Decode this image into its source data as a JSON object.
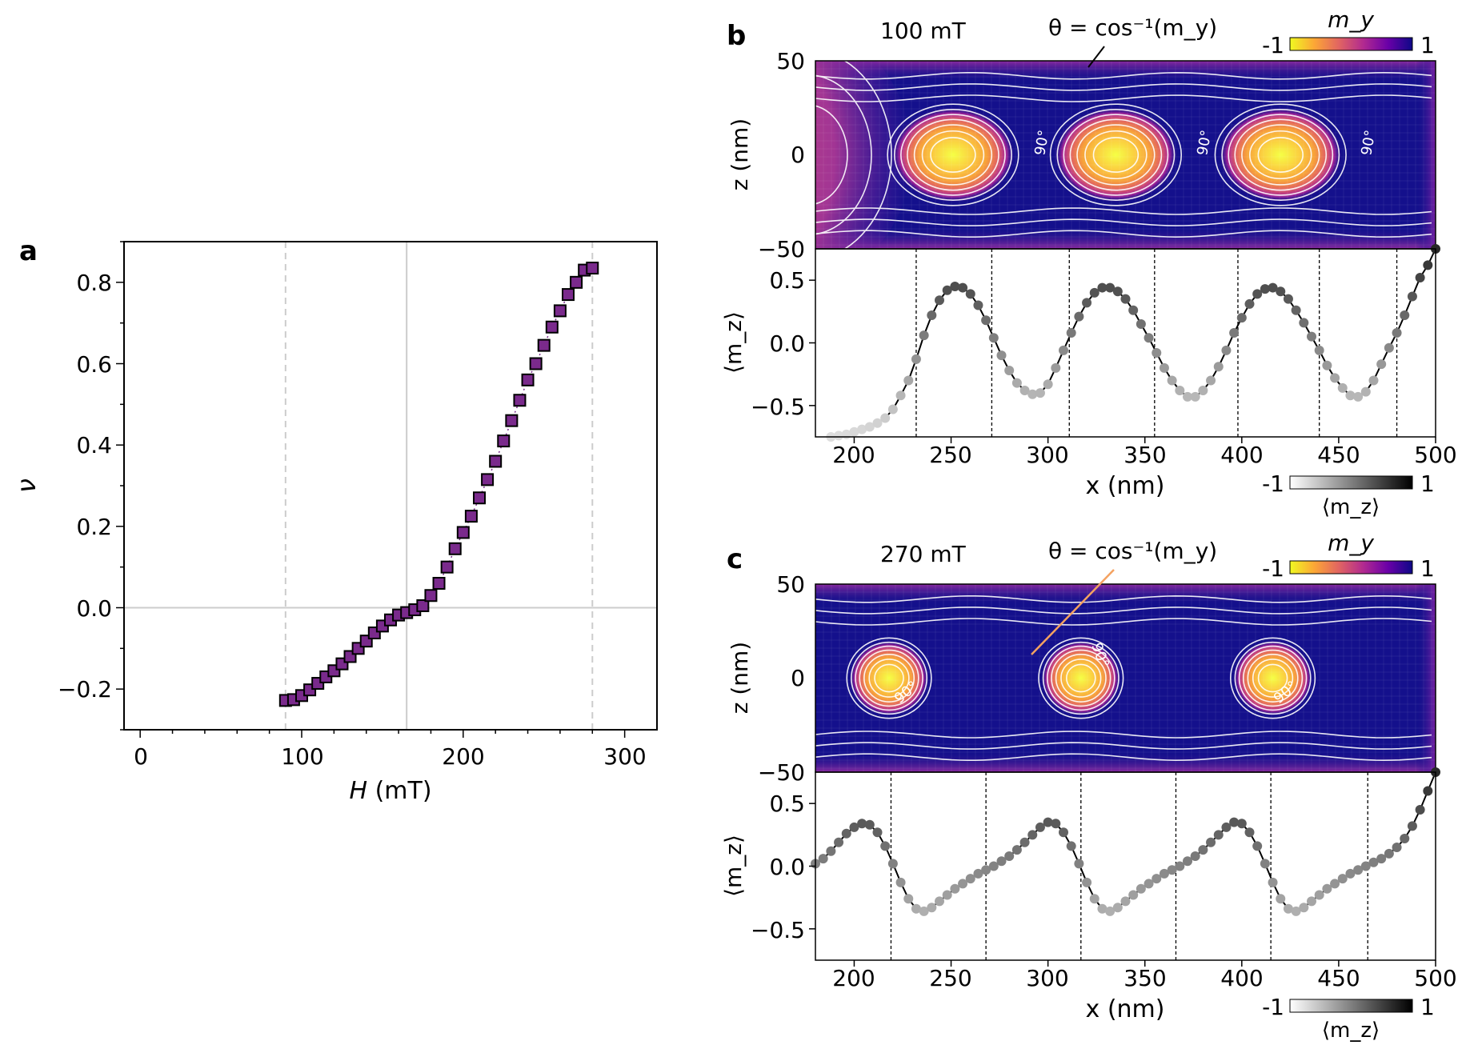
{
  "chart_data": [
    {
      "panel": "a",
      "type": "scatter",
      "xlabel_italic": "H",
      "xlabel_unit": " (mT)",
      "ylabel": "ν",
      "xlim": [
        -10,
        320
      ],
      "ylim": [
        -0.3,
        0.9
      ],
      "xticks": [
        "0",
        "100",
        "200",
        "300"
      ],
      "yticks": [
        "−0.2",
        "0.0",
        "0.2",
        "0.4",
        "0.6",
        "0.8"
      ],
      "marker_color": "#7a2a8c",
      "dashed_vlines": [
        90,
        280
      ],
      "solid_vline": 165,
      "hline": 0,
      "x": [
        90,
        95,
        100,
        105,
        110,
        115,
        120,
        125,
        130,
        135,
        140,
        145,
        150,
        155,
        160,
        165,
        170,
        175,
        180,
        185,
        190,
        195,
        200,
        205,
        210,
        215,
        220,
        225,
        230,
        235,
        240,
        245,
        250,
        255,
        260,
        265,
        270,
        275,
        280
      ],
      "y": [
        -0.228,
        -0.226,
        -0.216,
        -0.202,
        -0.186,
        -0.17,
        -0.155,
        -0.138,
        -0.12,
        -0.1,
        -0.082,
        -0.062,
        -0.045,
        -0.03,
        -0.018,
        -0.012,
        -0.005,
        0.005,
        0.03,
        0.06,
        0.1,
        0.145,
        0.185,
        0.225,
        0.27,
        0.315,
        0.36,
        0.41,
        0.46,
        0.51,
        0.56,
        0.6,
        0.645,
        0.69,
        0.73,
        0.77,
        0.8,
        0.83,
        0.835
      ]
    },
    {
      "panel": "b",
      "type": "heatmap",
      "field_label": "100 mT",
      "annotation": "θ = cos⁻¹(m_y)",
      "colorbar_title": "m_y",
      "colorbar_min": "-1",
      "colorbar_max": "1",
      "ylabel": "z (nm)",
      "yticks": [
        "50",
        "0",
        "−50"
      ],
      "contour_label": "90°",
      "xlim": [
        180,
        500
      ],
      "zlim": [
        -50,
        50
      ],
      "skyrmion_centers_x": [
        251,
        335,
        420
      ],
      "edge_bubble_x": 180
    },
    {
      "panel": "b",
      "type": "line",
      "ylabel": "⟨m_z⟩",
      "xlabel": "x (nm)",
      "xlim": [
        180,
        500
      ],
      "ylim": [
        -0.75,
        0.75
      ],
      "xticks": [
        "200",
        "250",
        "300",
        "350",
        "400",
        "450",
        "500"
      ],
      "yticks": [
        "0.5",
        "0.0",
        "−0.5"
      ],
      "dashed_vlines": [
        232,
        271,
        311,
        355,
        398,
        440,
        480
      ],
      "colorbar_min": "-1",
      "colorbar_max": "1",
      "colorbar_label": "⟨m_z⟩",
      "x": [
        188,
        192,
        196,
        200,
        204,
        208,
        212,
        216,
        220,
        224,
        228,
        232,
        236,
        240,
        244,
        248,
        252,
        256,
        260,
        264,
        268,
        272,
        276,
        280,
        284,
        288,
        292,
        296,
        300,
        304,
        308,
        312,
        316,
        320,
        324,
        328,
        332,
        336,
        340,
        344,
        348,
        352,
        356,
        360,
        364,
        368,
        372,
        376,
        380,
        384,
        388,
        392,
        396,
        400,
        404,
        408,
        412,
        416,
        420,
        424,
        428,
        432,
        436,
        440,
        444,
        448,
        452,
        456,
        460,
        464,
        468,
        472,
        476,
        480,
        484,
        488,
        492,
        496,
        500
      ],
      "y": [
        -0.75,
        -0.74,
        -0.73,
        -0.71,
        -0.69,
        -0.67,
        -0.64,
        -0.6,
        -0.53,
        -0.42,
        -0.3,
        -0.13,
        0.06,
        0.22,
        0.34,
        0.42,
        0.45,
        0.44,
        0.39,
        0.3,
        0.18,
        0.04,
        -0.1,
        -0.22,
        -0.32,
        -0.38,
        -0.41,
        -0.4,
        -0.33,
        -0.2,
        -0.06,
        0.08,
        0.21,
        0.32,
        0.4,
        0.44,
        0.44,
        0.41,
        0.35,
        0.26,
        0.15,
        0.04,
        -0.08,
        -0.2,
        -0.3,
        -0.38,
        -0.43,
        -0.43,
        -0.38,
        -0.3,
        -0.19,
        -0.06,
        0.08,
        0.2,
        0.31,
        0.39,
        0.43,
        0.44,
        0.41,
        0.35,
        0.26,
        0.16,
        0.05,
        -0.06,
        -0.18,
        -0.28,
        -0.36,
        -0.42,
        -0.43,
        -0.39,
        -0.3,
        -0.17,
        -0.04,
        0.08,
        0.22,
        0.37,
        0.52,
        0.62,
        0.75
      ]
    },
    {
      "panel": "c",
      "type": "heatmap",
      "field_label": "270 mT",
      "annotation": "θ = cos⁻¹(m_y)",
      "colorbar_title": "m_y",
      "colorbar_min": "-1",
      "colorbar_max": "1",
      "ylabel": "z (nm)",
      "yticks": [
        "50",
        "0",
        "−50"
      ],
      "contour_label": "90°",
      "xlim": [
        180,
        500
      ],
      "zlim": [
        -50,
        50
      ],
      "skyrmion_centers_x": [
        218,
        317,
        416
      ]
    },
    {
      "panel": "c",
      "type": "line",
      "ylabel": "⟨m_z⟩",
      "xlabel": "x (nm)",
      "xlim": [
        180,
        500
      ],
      "ylim": [
        -0.75,
        0.75
      ],
      "xticks": [
        "200",
        "250",
        "300",
        "350",
        "400",
        "450",
        "500"
      ],
      "yticks": [
        "0.5",
        "0.0",
        "−0.5"
      ],
      "dashed_vlines": [
        219,
        268,
        317,
        366,
        415,
        465
      ],
      "colorbar_min": "-1",
      "colorbar_max": "1",
      "colorbar_label": "⟨m_z⟩",
      "x": [
        180,
        184,
        188,
        192,
        196,
        200,
        204,
        208,
        212,
        216,
        220,
        224,
        228,
        232,
        236,
        240,
        244,
        248,
        252,
        256,
        260,
        264,
        268,
        272,
        276,
        280,
        284,
        288,
        292,
        296,
        300,
        304,
        308,
        312,
        316,
        320,
        324,
        328,
        332,
        336,
        340,
        344,
        348,
        352,
        356,
        360,
        364,
        368,
        372,
        376,
        380,
        384,
        388,
        392,
        396,
        400,
        404,
        408,
        412,
        416,
        420,
        424,
        428,
        432,
        436,
        440,
        444,
        448,
        452,
        456,
        460,
        464,
        468,
        472,
        476,
        480,
        484,
        488,
        492,
        496,
        500
      ],
      "y": [
        0.02,
        0.06,
        0.12,
        0.19,
        0.26,
        0.31,
        0.34,
        0.33,
        0.27,
        0.16,
        0.02,
        -0.13,
        -0.26,
        -0.34,
        -0.36,
        -0.33,
        -0.28,
        -0.23,
        -0.18,
        -0.14,
        -0.1,
        -0.06,
        -0.03,
        0,
        0.04,
        0.08,
        0.13,
        0.19,
        0.25,
        0.31,
        0.35,
        0.34,
        0.27,
        0.16,
        0.02,
        -0.13,
        -0.26,
        -0.34,
        -0.36,
        -0.33,
        -0.28,
        -0.23,
        -0.18,
        -0.14,
        -0.1,
        -0.06,
        -0.03,
        0,
        0.04,
        0.08,
        0.13,
        0.19,
        0.25,
        0.31,
        0.35,
        0.34,
        0.27,
        0.16,
        0.02,
        -0.13,
        -0.26,
        -0.34,
        -0.36,
        -0.33,
        -0.28,
        -0.23,
        -0.18,
        -0.14,
        -0.1,
        -0.06,
        -0.03,
        0,
        0.03,
        0.06,
        0.1,
        0.15,
        0.22,
        0.32,
        0.45,
        0.6,
        0.75
      ]
    }
  ],
  "panel_labels": {
    "a": "a",
    "b": "b",
    "c": "c"
  }
}
